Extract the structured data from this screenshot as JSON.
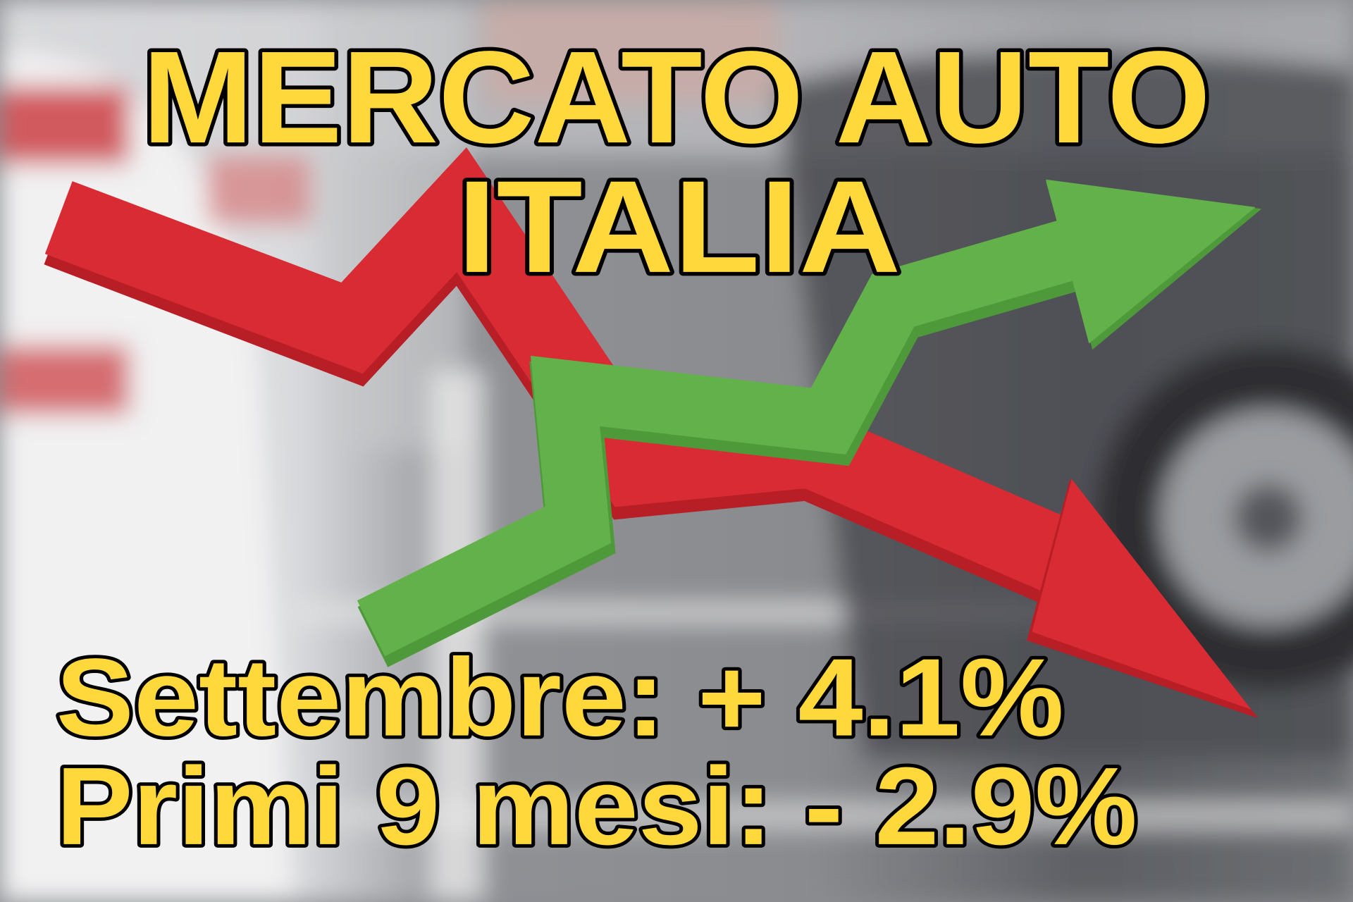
{
  "title": {
    "line1": "MERCATO AUTO",
    "line2": "ITALIA"
  },
  "stats": {
    "september": "Settembre: + 4.1%",
    "first_nine_months": "Primi 9 mesi: - 2.9%"
  },
  "colors": {
    "text_fill": "#FFD93B",
    "text_stroke": "#000000",
    "down_arrow": "#D92B33",
    "down_arrow_shadow": "#B81E26",
    "up_arrow": "#63B14B",
    "up_arrow_shadow": "#4E9A3A"
  },
  "icons": {
    "down_arrow": "trend-down-arrow-icon",
    "up_arrow": "trend-up-arrow-icon"
  }
}
